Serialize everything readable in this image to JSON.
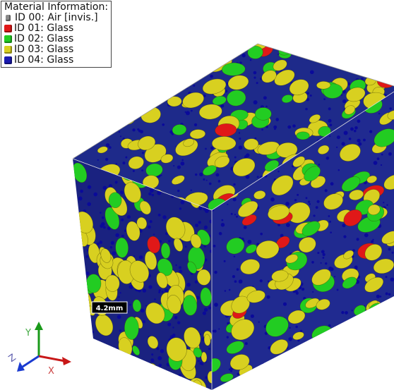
{
  "legend": {
    "title": "Material Information:",
    "items": [
      {
        "label": "ID 00: Air [invis.]",
        "color": "#8a8a8a"
      },
      {
        "label": "ID 01: Glass",
        "color": "#e01818"
      },
      {
        "label": "ID 02: Glass",
        "color": "#22cc22"
      },
      {
        "label": "ID 03: Glass",
        "color": "#d8d020"
      },
      {
        "label": "ID 04: Glass",
        "color": "#1a1ab0"
      }
    ]
  },
  "scale_bar": {
    "label": "4.2mm"
  },
  "axes": {
    "y": "Y",
    "z": "Z",
    "x": "X"
  }
}
